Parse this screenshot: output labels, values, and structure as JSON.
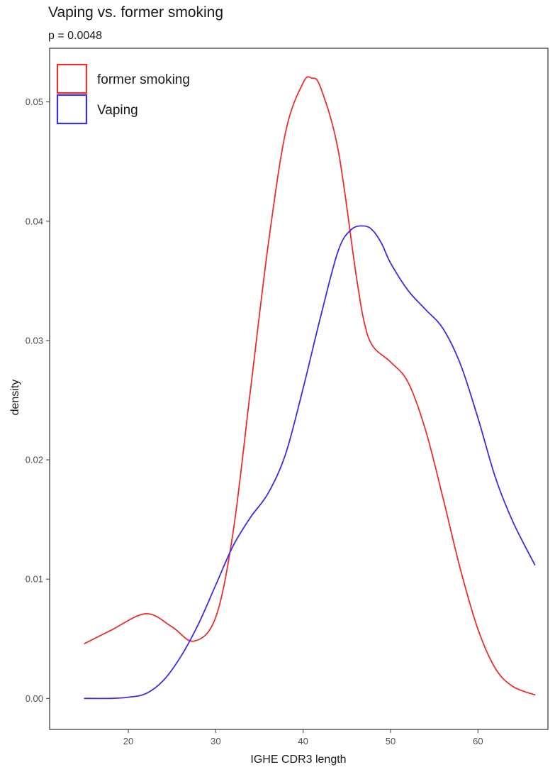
{
  "chart_data": {
    "type": "line",
    "title": "Vaping vs. former smoking",
    "subtitle": "p = 0.0048",
    "xlabel": "IGHE CDR3 length",
    "ylabel": "density",
    "xlim": [
      11,
      68
    ],
    "ylim": [
      -0.0026,
      0.0545
    ],
    "x_ticks": [
      20,
      30,
      40,
      50,
      60
    ],
    "x_tick_labels": [
      "20",
      "30",
      "40",
      "50",
      "60"
    ],
    "y_ticks": [
      0,
      0.01,
      0.02,
      0.03,
      0.04,
      0.05
    ],
    "y_tick_labels": [
      "0.00",
      "0.01",
      "0.02",
      "0.03",
      "0.04",
      "0.05"
    ],
    "grid": false,
    "legend_position": "top-left",
    "series": [
      {
        "name": "former smoking",
        "color": "#e8302f",
        "x": [
          15,
          18,
          22,
          25,
          27.5,
          30,
          32,
          34,
          36,
          38,
          40,
          41,
          42,
          44,
          46,
          47,
          48,
          50,
          52,
          54,
          56,
          58,
          60,
          62,
          64,
          66.5
        ],
        "y": [
          0.0046,
          0.0057,
          0.0071,
          0.006,
          0.0048,
          0.0068,
          0.014,
          0.026,
          0.038,
          0.0475,
          0.0516,
          0.052,
          0.0512,
          0.046,
          0.0358,
          0.0315,
          0.0295,
          0.0282,
          0.0265,
          0.0225,
          0.0168,
          0.0108,
          0.0058,
          0.0025,
          0.001,
          0.0003
        ]
      },
      {
        "name": "Vaping",
        "color": "#3a2ee0",
        "x": [
          15,
          18,
          20,
          22,
          24,
          26,
          28,
          30,
          32,
          34,
          36,
          38,
          40,
          42,
          44,
          45.5,
          47,
          48,
          49,
          50,
          52,
          54,
          56,
          58,
          60,
          62,
          64,
          66.5
        ],
        "y": [
          0,
          0,
          0.0001,
          0.0004,
          0.0015,
          0.0035,
          0.0062,
          0.0095,
          0.0128,
          0.0152,
          0.0172,
          0.0205,
          0.026,
          0.032,
          0.0375,
          0.0393,
          0.0396,
          0.0392,
          0.0381,
          0.0365,
          0.0342,
          0.0326,
          0.031,
          0.028,
          0.0235,
          0.0185,
          0.0148,
          0.0112
        ]
      }
    ]
  }
}
